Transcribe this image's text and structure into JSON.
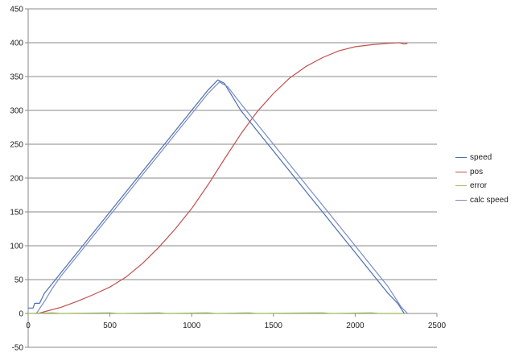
{
  "chart_data": {
    "type": "line",
    "title": "",
    "xlabel": "",
    "ylabel": "",
    "xlim": [
      0,
      2500
    ],
    "ylim": [
      -50,
      450
    ],
    "x_ticks": [
      0,
      500,
      1000,
      1500,
      2000,
      2500
    ],
    "y_ticks": [
      -50,
      0,
      50,
      100,
      150,
      200,
      250,
      300,
      350,
      400,
      450
    ],
    "grid": "horizontal",
    "legend_position": "right",
    "series": [
      {
        "name": "speed",
        "color": "#4a6fb3",
        "points": [
          [
            0,
            8
          ],
          [
            30,
            8
          ],
          [
            40,
            15
          ],
          [
            70,
            15
          ],
          [
            100,
            30
          ],
          [
            150,
            45
          ],
          [
            200,
            60
          ],
          [
            250,
            75
          ],
          [
            300,
            90
          ],
          [
            400,
            120
          ],
          [
            500,
            150
          ],
          [
            600,
            180
          ],
          [
            700,
            210
          ],
          [
            800,
            240
          ],
          [
            900,
            270
          ],
          [
            1000,
            300
          ],
          [
            1100,
            330
          ],
          [
            1160,
            345
          ],
          [
            1200,
            340
          ],
          [
            1250,
            320
          ],
          [
            1300,
            300
          ],
          [
            1400,
            270
          ],
          [
            1500,
            240
          ],
          [
            1600,
            210
          ],
          [
            1700,
            180
          ],
          [
            1800,
            150
          ],
          [
            1900,
            120
          ],
          [
            2000,
            90
          ],
          [
            2100,
            60
          ],
          [
            2200,
            30
          ],
          [
            2260,
            15
          ],
          [
            2300,
            0
          ]
        ]
      },
      {
        "name": "pos",
        "color": "#c0504d",
        "points": [
          [
            60,
            0
          ],
          [
            200,
            9
          ],
          [
            300,
            18
          ],
          [
            400,
            28
          ],
          [
            500,
            39
          ],
          [
            600,
            54
          ],
          [
            700,
            74
          ],
          [
            800,
            98
          ],
          [
            900,
            125
          ],
          [
            1000,
            155
          ],
          [
            1100,
            190
          ],
          [
            1200,
            228
          ],
          [
            1300,
            265
          ],
          [
            1400,
            298
          ],
          [
            1500,
            325
          ],
          [
            1600,
            348
          ],
          [
            1700,
            365
          ],
          [
            1800,
            378
          ],
          [
            1900,
            388
          ],
          [
            2000,
            394
          ],
          [
            2100,
            397
          ],
          [
            2200,
            399
          ],
          [
            2270,
            400
          ],
          [
            2300,
            398
          ],
          [
            2320,
            399
          ]
        ]
      },
      {
        "name": "error",
        "color": "#9bbb59",
        "points": [
          [
            0,
            0
          ],
          [
            150,
            1
          ],
          [
            200,
            0
          ],
          [
            500,
            1
          ],
          [
            550,
            0
          ],
          [
            800,
            1
          ],
          [
            850,
            0
          ],
          [
            1100,
            1
          ],
          [
            1150,
            0
          ],
          [
            1350,
            1
          ],
          [
            1400,
            0
          ],
          [
            1800,
            1
          ],
          [
            1850,
            0
          ],
          [
            2100,
            1
          ],
          [
            2150,
            0
          ],
          [
            2300,
            0
          ]
        ]
      },
      {
        "name": "calc speed",
        "color": "#7b8cc4",
        "points": [
          [
            50,
            0
          ],
          [
            100,
            18
          ],
          [
            150,
            38
          ],
          [
            200,
            55
          ],
          [
            300,
            85
          ],
          [
            400,
            115
          ],
          [
            500,
            145
          ],
          [
            600,
            175
          ],
          [
            700,
            205
          ],
          [
            800,
            235
          ],
          [
            900,
            265
          ],
          [
            1000,
            295
          ],
          [
            1100,
            325
          ],
          [
            1170,
            342
          ],
          [
            1220,
            335
          ],
          [
            1300,
            310
          ],
          [
            1400,
            280
          ],
          [
            1500,
            250
          ],
          [
            1600,
            220
          ],
          [
            1700,
            190
          ],
          [
            1800,
            160
          ],
          [
            1900,
            130
          ],
          [
            2000,
            100
          ],
          [
            2100,
            70
          ],
          [
            2200,
            40
          ],
          [
            2280,
            10
          ],
          [
            2320,
            0
          ]
        ]
      }
    ]
  }
}
